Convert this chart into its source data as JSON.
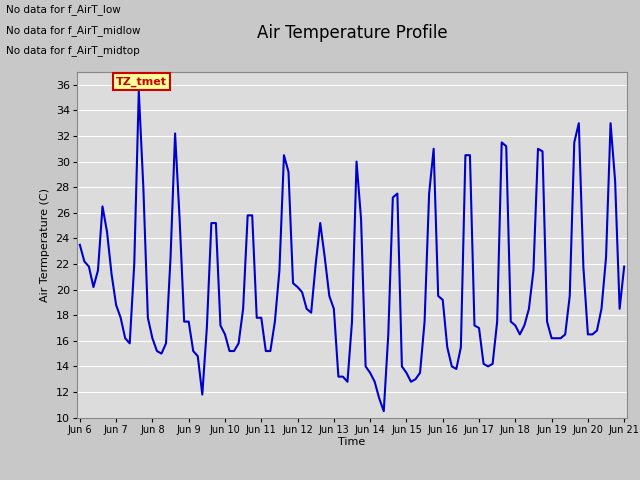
{
  "title": "Air Temperature Profile",
  "xlabel": "Time",
  "ylabel": "Air Termperature (C)",
  "line_color": "#0000cc",
  "line_width": 1.5,
  "ylim": [
    10,
    37
  ],
  "yticks": [
    10,
    12,
    14,
    16,
    18,
    20,
    22,
    24,
    26,
    28,
    30,
    32,
    34,
    36
  ],
  "fig_bg_color": "#c8c8c8",
  "plot_bg_color": "#dcdcdc",
  "annotations_text": [
    "No data for f_AirT_low",
    "No data for f_AirT_midlow",
    "No data for f_AirT_midtop"
  ],
  "tz_label": "TZ_tmet",
  "x_tick_labels": [
    "Jun 6",
    "Jun 7",
    "Jun 8",
    "Jun 9",
    "Jun 10",
    "Jun 11",
    "Jun 12",
    "Jun 13",
    "Jun 14",
    "Jun 15",
    "Jun 16",
    "Jun 17",
    "Jun 18",
    "Jun 19",
    "Jun 20",
    "Jun 21"
  ],
  "x_tick_positions": [
    0,
    24,
    48,
    72,
    96,
    120,
    144,
    168,
    192,
    216,
    240,
    264,
    288,
    312,
    336,
    360
  ],
  "time_data": [
    0,
    3,
    6,
    9,
    12,
    15,
    18,
    21,
    24,
    27,
    30,
    33,
    36,
    39,
    42,
    45,
    48,
    51,
    54,
    57,
    60,
    63,
    66,
    69,
    72,
    75,
    78,
    81,
    84,
    87,
    90,
    93,
    96,
    99,
    102,
    105,
    108,
    111,
    114,
    117,
    120,
    123,
    126,
    129,
    132,
    135,
    138,
    141,
    144,
    147,
    150,
    153,
    156,
    159,
    162,
    165,
    168,
    171,
    174,
    177,
    180,
    183,
    186,
    189,
    192,
    195,
    198,
    201,
    204,
    207,
    210,
    213,
    216,
    219,
    222,
    225,
    228,
    231,
    234,
    237,
    240,
    243,
    246,
    249,
    252,
    255,
    258,
    261,
    264,
    267,
    270,
    273,
    276,
    279,
    282,
    285,
    288,
    291,
    294,
    297,
    300,
    303,
    306,
    309,
    312,
    315,
    318,
    321,
    324,
    327,
    330,
    333,
    336,
    339,
    342,
    345,
    348,
    351,
    354,
    357,
    360
  ],
  "temp_data": [
    23.5,
    22.2,
    21.8,
    20.2,
    21.5,
    26.5,
    24.5,
    21.2,
    18.8,
    17.8,
    16.2,
    15.8,
    22.0,
    35.5,
    28.0,
    17.8,
    16.2,
    15.2,
    15.0,
    15.8,
    22.5,
    32.2,
    25.5,
    17.5,
    17.5,
    15.2,
    14.8,
    11.8,
    17.0,
    25.2,
    25.2,
    17.2,
    16.5,
    15.2,
    15.2,
    15.8,
    18.5,
    25.8,
    25.8,
    17.8,
    17.8,
    15.2,
    15.2,
    17.5,
    21.5,
    30.5,
    29.2,
    20.5,
    20.2,
    19.8,
    18.5,
    18.2,
    22.0,
    25.2,
    22.5,
    19.5,
    18.5,
    13.2,
    13.2,
    12.8,
    17.5,
    30.0,
    25.5,
    14.0,
    13.5,
    12.8,
    11.5,
    10.5,
    16.5,
    27.2,
    27.5,
    14.0,
    13.5,
    12.8,
    13.0,
    13.5,
    17.5,
    27.5,
    31.0,
    19.5,
    19.2,
    15.5,
    14.0,
    13.8,
    15.5,
    30.5,
    30.5,
    17.2,
    17.0,
    14.2,
    14.0,
    14.2,
    17.5,
    31.5,
    31.2,
    17.5,
    17.2,
    16.5,
    17.2,
    18.5,
    21.5,
    31.0,
    30.8,
    17.5,
    16.2,
    16.2,
    16.2,
    16.5,
    19.5,
    31.5,
    33.0,
    21.8,
    16.5,
    16.5,
    16.8,
    18.5,
    22.5,
    33.0,
    28.5,
    18.5,
    21.8
  ]
}
